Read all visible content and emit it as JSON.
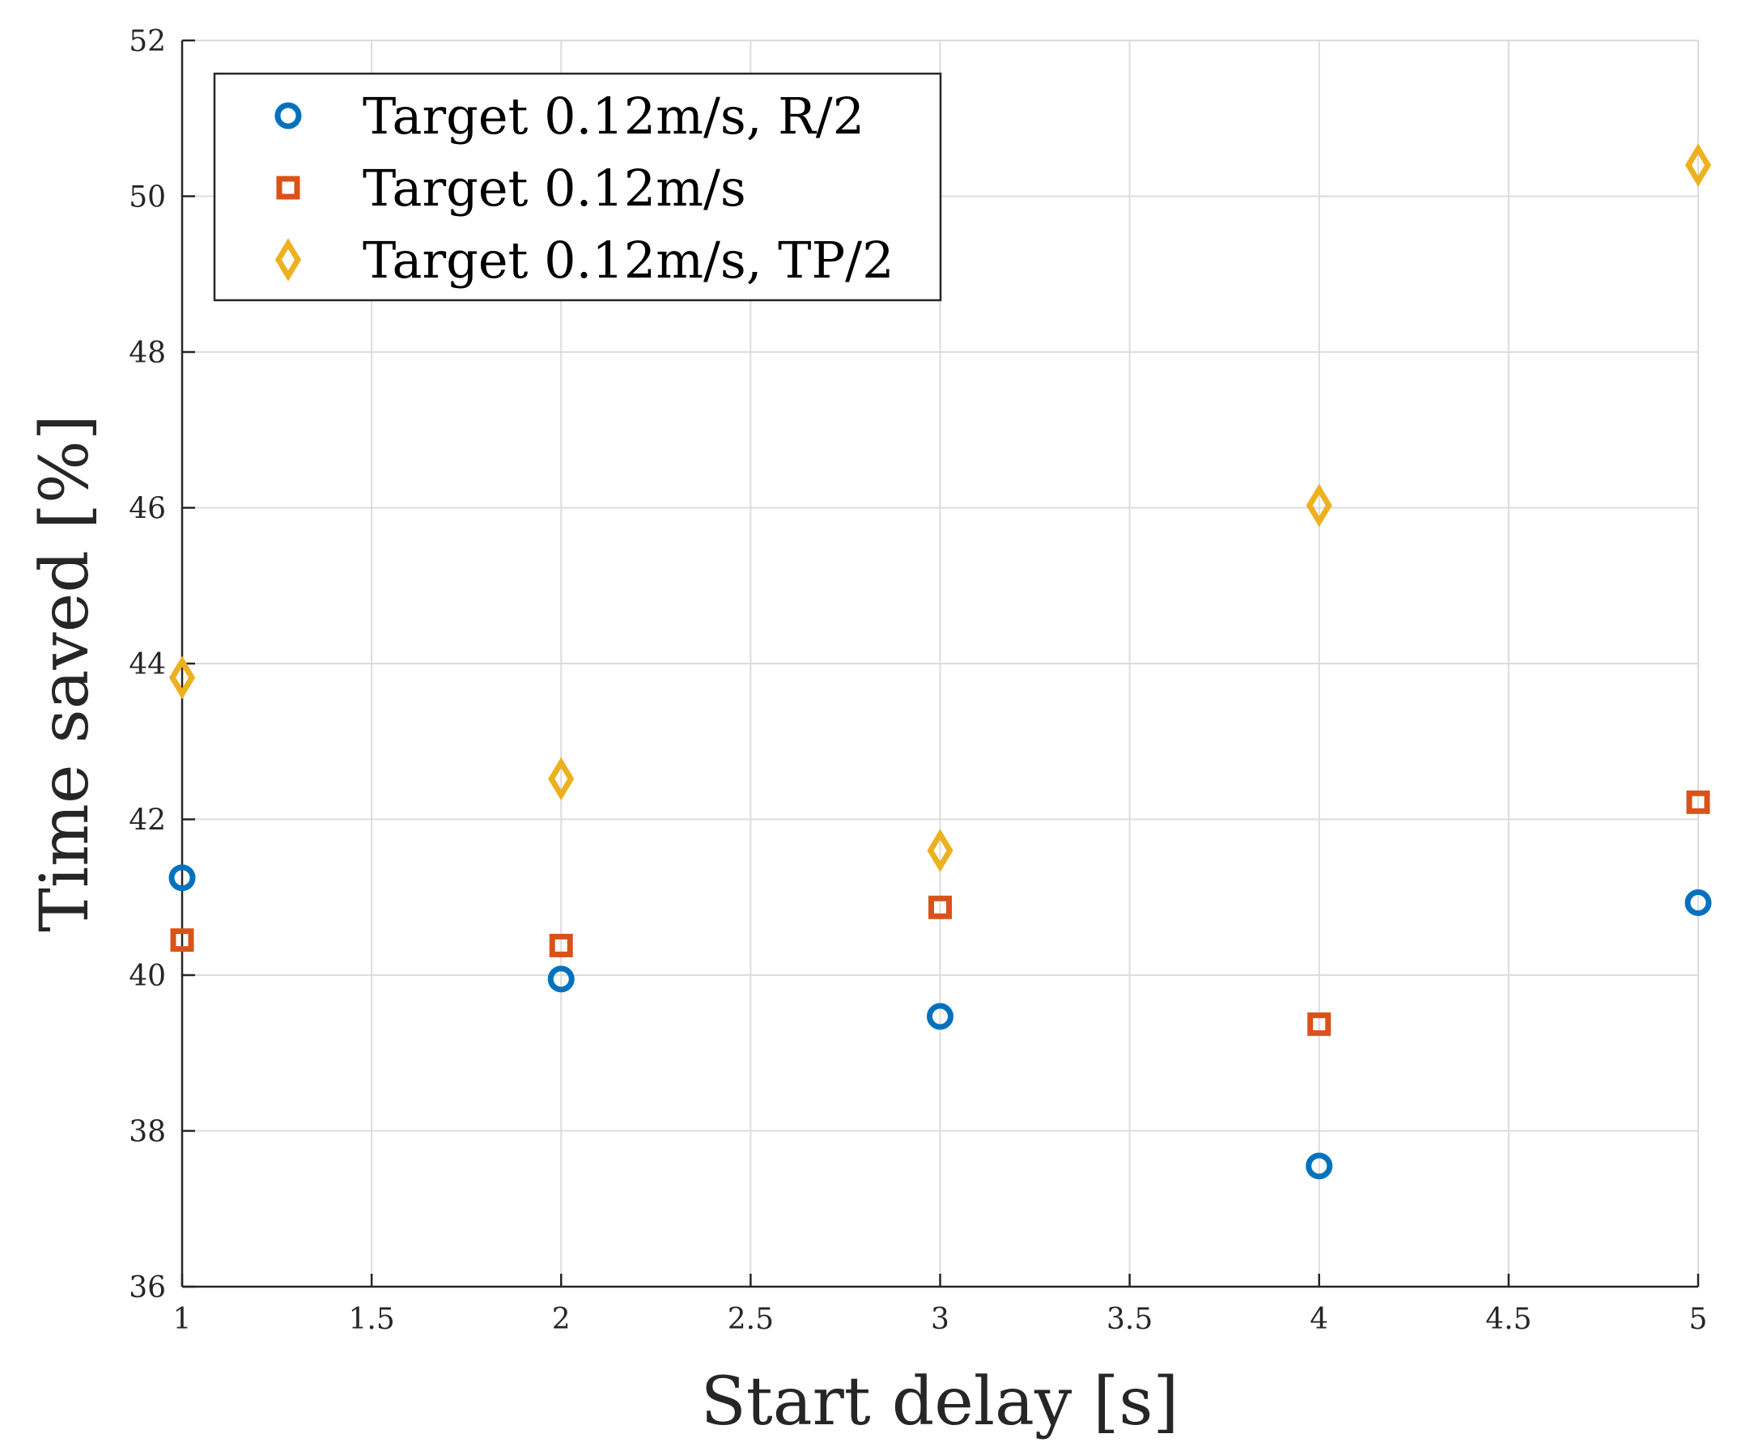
{
  "chart_data": {
    "type": "scatter",
    "title": "",
    "xlabel": "Start delay [s]",
    "ylabel": "Time saved [%]",
    "xlim": [
      1,
      5
    ],
    "ylim": [
      36,
      52
    ],
    "xticks": [
      "1",
      "1.5",
      "2",
      "2.5",
      "3",
      "3.5",
      "4",
      "4.5",
      "5"
    ],
    "yticks": [
      "36",
      "38",
      "40",
      "42",
      "44",
      "46",
      "48",
      "50",
      "52"
    ],
    "grid": true,
    "legend_position": "top-left",
    "x": [
      1,
      2,
      3,
      4,
      5
    ],
    "series": [
      {
        "name": "Target 0.12m/s, R/2",
        "marker": "circle",
        "color": "#0072BD",
        "values": [
          41.25,
          39.95,
          39.47,
          37.55,
          40.93
        ]
      },
      {
        "name": "Target 0.12m/s",
        "marker": "square",
        "color": "#D95319",
        "values": [
          40.45,
          40.38,
          40.87,
          39.37,
          42.22
        ]
      },
      {
        "name": "Target 0.12m/s, TP/2",
        "marker": "diamond",
        "color": "#EDB120",
        "values": [
          43.82,
          42.52,
          41.6,
          46.03,
          50.4
        ]
      }
    ]
  }
}
